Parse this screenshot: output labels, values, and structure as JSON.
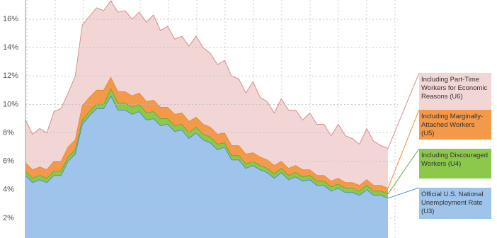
{
  "chart_data": {
    "type": "area",
    "categories": [
      null,
      null,
      null,
      null,
      null,
      null,
      null,
      null,
      null,
      null,
      null,
      null,
      null,
      null,
      null,
      null,
      null,
      null,
      null,
      null,
      null,
      null,
      null,
      null,
      null,
      null,
      null,
      null,
      null,
      null,
      null,
      null,
      null,
      null,
      null,
      null,
      null,
      null,
      null,
      null,
      null,
      null,
      null,
      null,
      null,
      null,
      null,
      null,
      null,
      null,
      null,
      null
    ],
    "ylim": [
      0.6,
      17.35
    ],
    "yticks": [
      {
        "value": 2,
        "label": "2%"
      },
      {
        "value": 4,
        "label": "4%"
      },
      {
        "value": 6,
        "label": "6%"
      },
      {
        "value": 8,
        "label": "8%"
      },
      {
        "value": 10,
        "label": "10%"
      },
      {
        "value": 12,
        "label": "12%"
      },
      {
        "value": 14,
        "label": "14%"
      },
      {
        "value": 16,
        "label": "16%"
      }
    ],
    "grid": true,
    "series": [
      {
        "name": "Including Part-Time Workers for Economic Reasons (U6)",
        "color": "#f2d6d6",
        "line_color": "#d98c8c",
        "values": [
          8.9,
          7.9,
          8.3,
          8.0,
          9.5,
          9.7,
          10.8,
          12.0,
          15.6,
          16.2,
          16.8,
          16.6,
          17.3,
          16.5,
          16.6,
          16.0,
          16.5,
          15.8,
          16.3,
          15.2,
          15.5,
          14.6,
          14.8,
          14.1,
          14.8,
          14.0,
          13.6,
          12.8,
          13.1,
          12.0,
          11.8,
          10.8,
          11.6,
          10.5,
          10.2,
          9.4,
          10.4,
          9.6,
          9.6,
          8.9,
          9.4,
          8.6,
          8.6,
          7.8,
          8.6,
          7.8,
          7.6,
          7.2,
          8.3,
          7.4,
          7.1,
          6.9
        ]
      },
      {
        "name": "Including Marginally-Attached Workers (U5)",
        "color": "#f4994a",
        "line_color": "#ee8a33",
        "values": [
          5.9,
          5.4,
          5.6,
          5.4,
          6.0,
          6.0,
          7.0,
          7.5,
          9.9,
          10.5,
          11.0,
          11.0,
          11.9,
          10.9,
          10.9,
          10.6,
          10.8,
          10.2,
          10.3,
          9.8,
          9.8,
          9.3,
          9.4,
          8.8,
          9.1,
          8.6,
          8.4,
          7.9,
          8.0,
          7.1,
          7.1,
          6.5,
          6.6,
          6.3,
          6.1,
          5.7,
          6.0,
          5.5,
          5.7,
          5.4,
          5.4,
          5.0,
          5.0,
          4.6,
          4.8,
          4.5,
          4.5,
          4.3,
          4.7,
          4.3,
          4.3,
          4.1
        ]
      },
      {
        "name": "Including Discouraged Workers (U4)",
        "color": "#8cc84b",
        "line_color": "#6aae2e",
        "values": [
          5.3,
          4.8,
          5.0,
          4.8,
          5.3,
          5.3,
          6.3,
          6.8,
          8.9,
          9.5,
          10.0,
          10.0,
          11.1,
          10.1,
          10.1,
          9.8,
          10.0,
          9.4,
          9.5,
          9.0,
          9.0,
          8.5,
          8.6,
          8.0,
          8.4,
          7.9,
          7.7,
          7.2,
          7.3,
          6.4,
          6.4,
          5.8,
          6.0,
          5.7,
          5.5,
          5.1,
          5.5,
          5.0,
          5.2,
          4.9,
          5.0,
          4.6,
          4.6,
          4.2,
          4.4,
          4.1,
          4.1,
          3.9,
          4.3,
          3.9,
          3.9,
          3.7
        ]
      },
      {
        "name": "Official U.S. National Unemployment Rate (U3)",
        "color": "#9ec4ec",
        "line_color": "#4a8fd6",
        "values": [
          5.0,
          4.5,
          4.7,
          4.5,
          5.0,
          5.0,
          6.0,
          6.5,
          8.6,
          9.2,
          9.7,
          9.7,
          10.6,
          9.6,
          9.6,
          9.3,
          9.5,
          8.9,
          9.0,
          8.5,
          8.6,
          8.1,
          8.2,
          7.6,
          8.0,
          7.5,
          7.3,
          6.8,
          7.0,
          6.1,
          6.1,
          5.5,
          5.7,
          5.4,
          5.2,
          4.8,
          5.2,
          4.7,
          4.9,
          4.6,
          4.7,
          4.3,
          4.3,
          3.9,
          4.1,
          3.8,
          3.8,
          3.6,
          4.0,
          3.6,
          3.6,
          3.4
        ]
      }
    ]
  }
}
